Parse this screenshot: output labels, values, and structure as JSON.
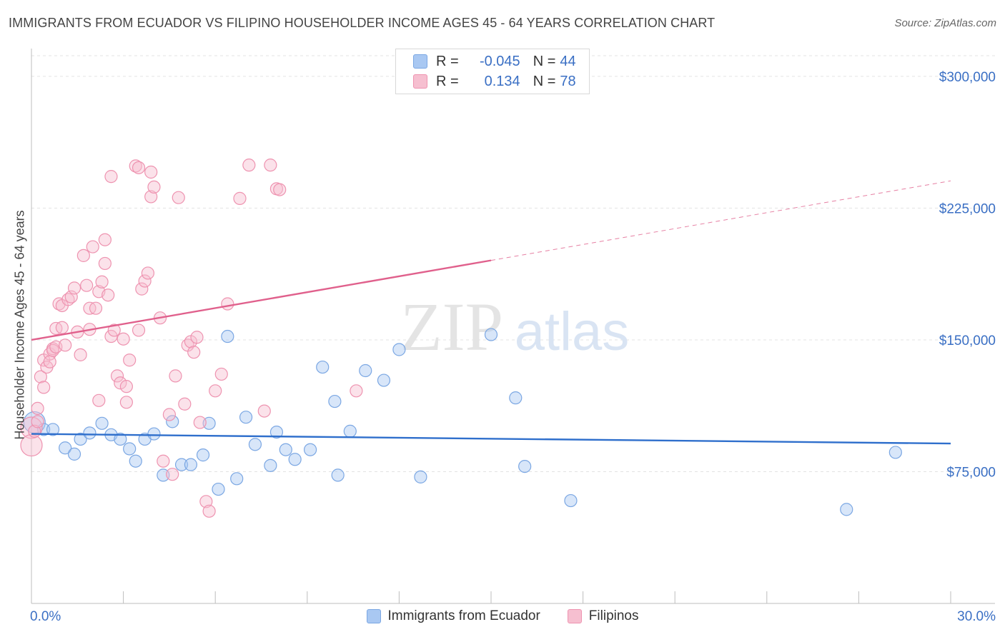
{
  "title": "IMMIGRANTS FROM ECUADOR VS FILIPINO HOUSEHOLDER INCOME AGES 45 - 64 YEARS CORRELATION CHART",
  "source": "Source: ZipAtlas.com",
  "watermark": {
    "zip": "ZIP",
    "atlas": "atlas"
  },
  "stats": [
    {
      "r_label": "R = ",
      "r_value": "-0.045",
      "n_label": "N = ",
      "n_value": "44",
      "color": "#a9c8f2",
      "border": "#7ba7e3"
    },
    {
      "r_label": "R = ",
      "r_value": "0.134",
      "n_label": "N = ",
      "n_value": "78",
      "color": "#f6bfd0",
      "border": "#ee93b0"
    }
  ],
  "chart_data": {
    "type": "scatter",
    "xlabel": "",
    "ylabel": "Householder Income Ages 45 - 64 years",
    "xlim": [
      0,
      30
    ],
    "ylim": [
      0,
      315000
    ],
    "x_tick_labels": [
      "0.0%",
      "30.0%"
    ],
    "y_ticks": [
      {
        "value": 75000,
        "label": "$75,000"
      },
      {
        "value": 150000,
        "label": "$150,000"
      },
      {
        "value": 225000,
        "label": "$225,000"
      },
      {
        "value": 300000,
        "label": "$300,000"
      }
    ],
    "grid": true,
    "series": [
      {
        "name": "Immigrants from Ecuador",
        "color": "#a9c8f2",
        "stroke": "#7ba7e3",
        "trend_color": "#2f6fcc",
        "trend": {
          "x": [
            0,
            30
          ],
          "y": [
            96500,
            91000
          ],
          "solid_until": 30
        },
        "points": [
          [
            0.1,
            103000
          ],
          [
            0.4,
            99000
          ],
          [
            0.7,
            99000
          ],
          [
            1.1,
            88500
          ],
          [
            1.4,
            85000
          ],
          [
            1.6,
            93500
          ],
          [
            1.9,
            97000
          ],
          [
            2.3,
            102500
          ],
          [
            2.6,
            96000
          ],
          [
            2.9,
            93500
          ],
          [
            3.2,
            88000
          ],
          [
            3.4,
            81000
          ],
          [
            3.7,
            93500
          ],
          [
            4.0,
            96500
          ],
          [
            4.3,
            73000
          ],
          [
            4.6,
            103500
          ],
          [
            4.9,
            79000
          ],
          [
            5.2,
            79000
          ],
          [
            5.6,
            84500
          ],
          [
            5.8,
            102500
          ],
          [
            6.1,
            65000
          ],
          [
            6.4,
            152000
          ],
          [
            6.7,
            71000
          ],
          [
            7.0,
            106000
          ],
          [
            7.3,
            90500
          ],
          [
            7.8,
            78500
          ],
          [
            8.0,
            97500
          ],
          [
            8.3,
            87500
          ],
          [
            8.6,
            82000
          ],
          [
            9.1,
            87500
          ],
          [
            9.5,
            134500
          ],
          [
            9.9,
            115000
          ],
          [
            10.0,
            73000
          ],
          [
            10.4,
            98000
          ],
          [
            10.9,
            132500
          ],
          [
            11.5,
            127000
          ],
          [
            12.0,
            144500
          ],
          [
            12.7,
            72000
          ],
          [
            15.0,
            153000
          ],
          [
            15.8,
            117000
          ],
          [
            16.1,
            78000
          ],
          [
            17.6,
            58500
          ],
          [
            26.6,
            53500
          ],
          [
            28.2,
            86000
          ]
        ]
      },
      {
        "name": "Filipinos",
        "color": "#f6bfd0",
        "stroke": "#ee93b0",
        "trend_color": "#e0608c",
        "trend": {
          "x": [
            0,
            30
          ],
          "y": [
            150000,
            240500
          ],
          "solid_until": 15.0
        },
        "points": [
          [
            0.0,
            100000
          ],
          [
            0.0,
            90000
          ],
          [
            0.2,
            111000
          ],
          [
            0.3,
            129000
          ],
          [
            0.4,
            123000
          ],
          [
            0.4,
            138500
          ],
          [
            0.5,
            134500
          ],
          [
            0.6,
            142000
          ],
          [
            0.6,
            137500
          ],
          [
            0.7,
            145000
          ],
          [
            0.7,
            144000
          ],
          [
            0.8,
            146000
          ],
          [
            0.8,
            156500
          ],
          [
            0.9,
            170500
          ],
          [
            1.0,
            169500
          ],
          [
            1.0,
            157000
          ],
          [
            1.1,
            147000
          ],
          [
            1.2,
            173000
          ],
          [
            1.3,
            174500
          ],
          [
            1.4,
            179500
          ],
          [
            1.5,
            154500
          ],
          [
            1.6,
            141500
          ],
          [
            1.7,
            198000
          ],
          [
            1.8,
            181000
          ],
          [
            1.9,
            156000
          ],
          [
            1.9,
            168000
          ],
          [
            2.0,
            203000
          ],
          [
            2.1,
            168000
          ],
          [
            2.2,
            115500
          ],
          [
            2.2,
            177500
          ],
          [
            2.3,
            183000
          ],
          [
            2.4,
            193500
          ],
          [
            2.4,
            207000
          ],
          [
            2.5,
            175500
          ],
          [
            2.6,
            152000
          ],
          [
            2.6,
            243000
          ],
          [
            2.7,
            155500
          ],
          [
            2.8,
            129500
          ],
          [
            2.9,
            125500
          ],
          [
            3.0,
            150500
          ],
          [
            3.1,
            114500
          ],
          [
            3.1,
            123500
          ],
          [
            3.2,
            138500
          ],
          [
            3.4,
            249000
          ],
          [
            3.5,
            248000
          ],
          [
            3.5,
            155500
          ],
          [
            3.6,
            179000
          ],
          [
            3.7,
            183500
          ],
          [
            3.8,
            188000
          ],
          [
            3.9,
            245500
          ],
          [
            3.9,
            231500
          ],
          [
            4.0,
            237000
          ],
          [
            4.2,
            162500
          ],
          [
            4.3,
            81000
          ],
          [
            4.5,
            107500
          ],
          [
            4.6,
            73500
          ],
          [
            4.7,
            129500
          ],
          [
            4.8,
            231000
          ],
          [
            5.0,
            113500
          ],
          [
            5.1,
            147000
          ],
          [
            5.2,
            149000
          ],
          [
            5.3,
            143000
          ],
          [
            5.4,
            151500
          ],
          [
            5.5,
            103000
          ],
          [
            5.7,
            58000
          ],
          [
            5.8,
            52500
          ],
          [
            6.0,
            121000
          ],
          [
            6.2,
            130500
          ],
          [
            6.4,
            170500
          ],
          [
            6.8,
            230500
          ],
          [
            7.1,
            249500
          ],
          [
            7.6,
            109500
          ],
          [
            7.8,
            249500
          ],
          [
            8.0,
            236000
          ],
          [
            8.1,
            235500
          ],
          [
            10.6,
            121000
          ],
          [
            0.1,
            98000
          ],
          [
            0.2,
            103500
          ]
        ]
      }
    ]
  }
}
